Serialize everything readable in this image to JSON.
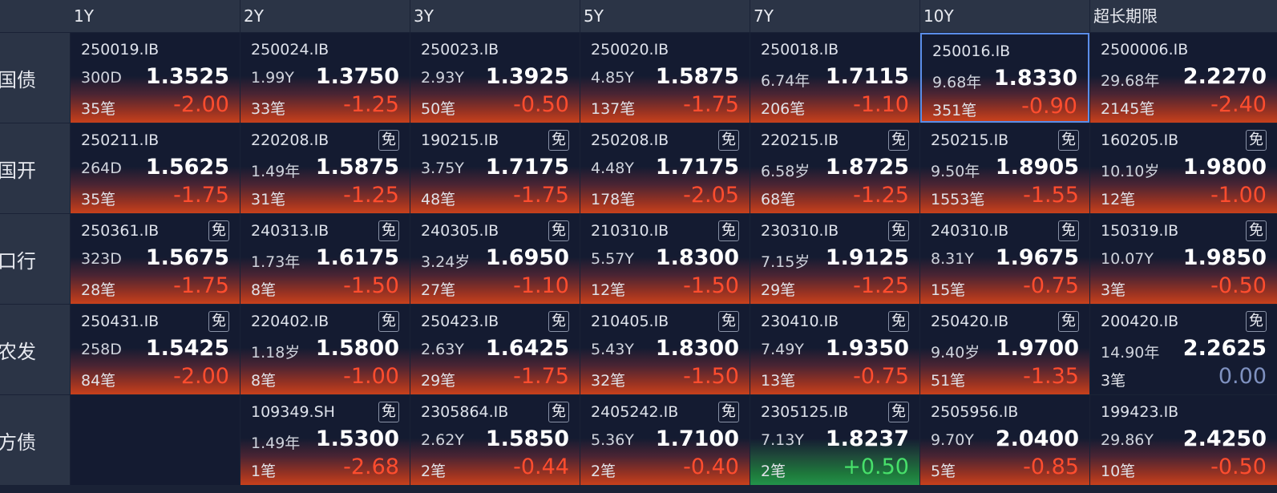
{
  "header": {
    "columns": [
      "1Y",
      "2Y",
      "3Y",
      "5Y",
      "7Y",
      "10Y",
      "超长期限"
    ]
  },
  "rows": [
    {
      "label": "国债",
      "cells": [
        {
          "code": "250019.IB",
          "tenor": "300D",
          "price": "1.3525",
          "count": "35笔",
          "change": "-2.00"
        },
        {
          "code": "250024.IB",
          "tenor": "1.99Y",
          "price": "1.3750",
          "count": "33笔",
          "change": "-1.25"
        },
        {
          "code": "250023.IB",
          "tenor": "2.93Y",
          "price": "1.3925",
          "count": "50笔",
          "change": "-0.50"
        },
        {
          "code": "250020.IB",
          "tenor": "4.85Y",
          "price": "1.5875",
          "count": "137笔",
          "change": "-1.75"
        },
        {
          "code": "250018.IB",
          "tenor": "6.74年",
          "price": "1.7115",
          "count": "206笔",
          "change": "-1.10"
        },
        {
          "code": "250016.IB",
          "tenor": "9.68年",
          "price": "1.8330",
          "count": "351笔",
          "change": "-0.90",
          "selected": true
        },
        {
          "code": "2500006.IB",
          "tenor": "29.68年",
          "price": "2.2270",
          "count": "2145笔",
          "change": "-2.40"
        }
      ]
    },
    {
      "label": "国开",
      "cells": [
        {
          "code": "250211.IB",
          "tenor": "264D",
          "price": "1.5625",
          "count": "35笔",
          "change": "-1.75"
        },
        {
          "code": "220208.IB",
          "badge": "免",
          "tenor": "1.49年",
          "price": "1.5875",
          "count": "31笔",
          "change": "-1.25"
        },
        {
          "code": "190215.IB",
          "badge": "免",
          "tenor": "3.75Y",
          "price": "1.7175",
          "count": "48笔",
          "change": "-1.75"
        },
        {
          "code": "250208.IB",
          "badge": "免",
          "tenor": "4.48Y",
          "price": "1.7175",
          "count": "178笔",
          "change": "-2.05"
        },
        {
          "code": "220215.IB",
          "badge": "免",
          "tenor": "6.58岁",
          "price": "1.8725",
          "count": "68笔",
          "change": "-1.25"
        },
        {
          "code": "250215.IB",
          "badge": "免",
          "tenor": "9.50年",
          "price": "1.8905",
          "count": "1553笔",
          "change": "-1.55"
        },
        {
          "code": "160205.IB",
          "badge": "免",
          "tenor": "10.10岁",
          "price": "1.9800",
          "count": "12笔",
          "change": "-1.00"
        }
      ]
    },
    {
      "label": "口行",
      "cells": [
        {
          "code": "250361.IB",
          "badge": "免",
          "tenor": "323D",
          "price": "1.5675",
          "count": "28笔",
          "change": "-1.75"
        },
        {
          "code": "240313.IB",
          "badge": "免",
          "tenor": "1.73年",
          "price": "1.6175",
          "count": "8笔",
          "change": "-1.50"
        },
        {
          "code": "240305.IB",
          "badge": "免",
          "tenor": "3.24岁",
          "price": "1.6950",
          "count": "27笔",
          "change": "-1.10"
        },
        {
          "code": "210310.IB",
          "badge": "免",
          "tenor": "5.57Y",
          "price": "1.8300",
          "count": "12笔",
          "change": "-1.50"
        },
        {
          "code": "230310.IB",
          "badge": "免",
          "tenor": "7.15岁",
          "price": "1.9125",
          "count": "29笔",
          "change": "-1.25"
        },
        {
          "code": "240310.IB",
          "badge": "免",
          "tenor": "8.31Y",
          "price": "1.9675",
          "count": "15笔",
          "change": "-0.75"
        },
        {
          "code": "150319.IB",
          "badge": "免",
          "tenor": "10.07Y",
          "price": "1.9850",
          "count": "3笔",
          "change": "-0.50"
        }
      ]
    },
    {
      "label": "农发",
      "cells": [
        {
          "code": "250431.IB",
          "badge": "免",
          "tenor": "258D",
          "price": "1.5425",
          "count": "84笔",
          "change": "-2.00"
        },
        {
          "code": "220402.IB",
          "badge": "免",
          "tenor": "1.18岁",
          "price": "1.5800",
          "count": "8笔",
          "change": "-1.00"
        },
        {
          "code": "250423.IB",
          "badge": "免",
          "tenor": "2.63Y",
          "price": "1.6425",
          "count": "29笔",
          "change": "-1.75"
        },
        {
          "code": "210405.IB",
          "badge": "免",
          "tenor": "5.43Y",
          "price": "1.8300",
          "count": "32笔",
          "change": "-1.50"
        },
        {
          "code": "230410.IB",
          "badge": "免",
          "tenor": "7.49Y",
          "price": "1.9350",
          "count": "13笔",
          "change": "-0.75"
        },
        {
          "code": "250420.IB",
          "badge": "免",
          "tenor": "9.40岁",
          "price": "1.9700",
          "count": "51笔",
          "change": "-1.35"
        },
        {
          "code": "200420.IB",
          "badge": "免",
          "tenor": "14.90年",
          "price": "2.2625",
          "count": "3笔",
          "change": "0.00"
        }
      ]
    },
    {
      "label": "方债",
      "cells": [
        null,
        {
          "code": "109349.SH",
          "badge": "免",
          "tenor": "1.49年",
          "price": "1.5300",
          "count": "1笔",
          "change": "-2.68"
        },
        {
          "code": "2305864.IB",
          "badge": "免",
          "tenor": "2.62Y",
          "price": "1.5850",
          "count": "2笔",
          "change": "-0.44"
        },
        {
          "code": "2405242.IB",
          "badge": "免",
          "tenor": "5.36Y",
          "price": "1.7100",
          "count": "2笔",
          "change": "-0.40"
        },
        {
          "code": "2305125.IB",
          "badge": "免",
          "tenor": "7.13Y",
          "price": "1.8237",
          "count": "2笔",
          "change": "+0.50"
        },
        {
          "code": "2505956.IB",
          "tenor": "9.70Y",
          "price": "2.0400",
          "count": "5笔",
          "change": "-0.85"
        },
        {
          "code": "199423.IB",
          "tenor": "29.86Y",
          "price": "2.4250",
          "count": "10笔",
          "change": "-0.50"
        }
      ]
    }
  ]
}
